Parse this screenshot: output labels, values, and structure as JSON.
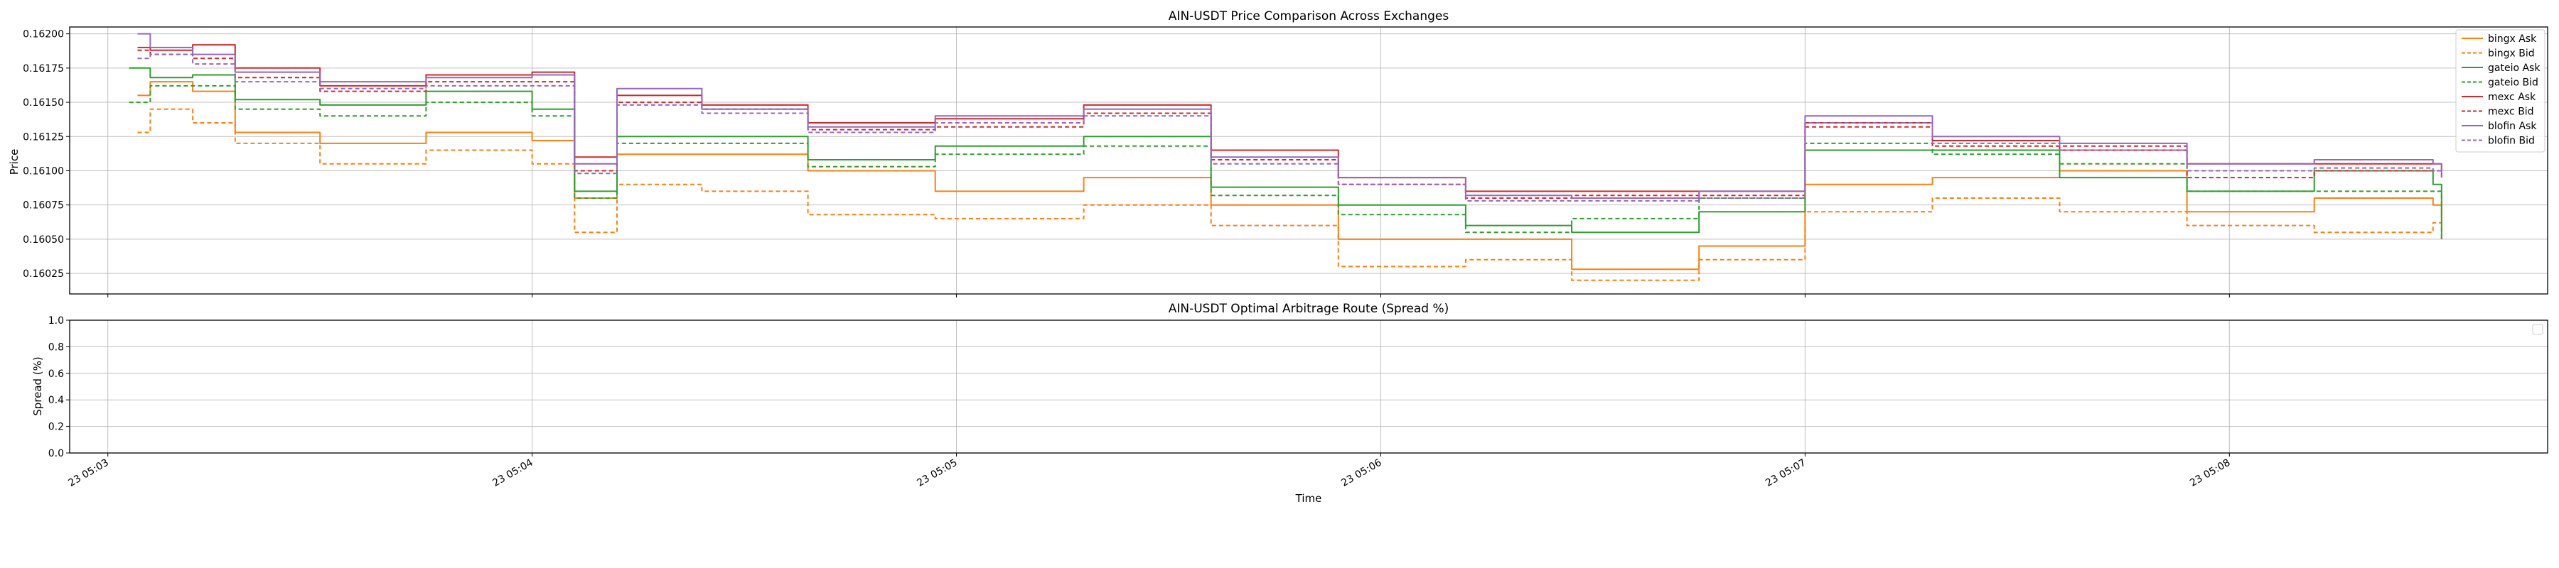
{
  "figure": {
    "background": "#ffffff"
  },
  "chart_data": [
    {
      "type": "line",
      "title": "AIN-USDT Price Comparison Across Exchanges",
      "xlabel": "",
      "ylabel": "Price",
      "xlim": [
        -0.09,
        5.75
      ],
      "ylim": [
        0.1601,
        0.16205
      ],
      "yticks": [
        0.16025,
        0.1605,
        0.16075,
        0.161,
        0.16125,
        0.1615,
        0.16175,
        0.162
      ],
      "ytick_labels": [
        "0.16025",
        "0.16050",
        "0.16075",
        "0.16100",
        "0.16125",
        "0.16150",
        "0.16175",
        "0.16200"
      ],
      "grid": true,
      "legend_position": "top-right",
      "series": [
        {
          "name": "bingx Ask",
          "color": "#ff7f0e",
          "dash": "solid",
          "dash_style": "none",
          "x": [
            0.07,
            0.1,
            0.2,
            0.3,
            0.5,
            0.75,
            1.0,
            1.1,
            1.2,
            1.4,
            1.65,
            1.95,
            2.3,
            2.6,
            2.9,
            3.2,
            3.45,
            3.75,
            4.0,
            4.3,
            4.6,
            4.9,
            5.2,
            5.48,
            5.5
          ],
          "y": [
            0.16155,
            0.16165,
            0.16158,
            0.16128,
            0.1612,
            0.16128,
            0.16122,
            0.1608,
            0.16112,
            0.16112,
            0.161,
            0.16085,
            0.16095,
            0.16075,
            0.1605,
            0.1605,
            0.16028,
            0.16045,
            0.1609,
            0.16095,
            0.161,
            0.1607,
            0.1608,
            0.16075,
            0.16065
          ]
        },
        {
          "name": "bingx Bid",
          "color": "#ff7f0e",
          "dash": "dashed",
          "dash_style": "6,4",
          "x": [
            0.07,
            0.1,
            0.2,
            0.3,
            0.5,
            0.75,
            1.0,
            1.1,
            1.2,
            1.4,
            1.65,
            1.95,
            2.3,
            2.6,
            2.9,
            3.2,
            3.45,
            3.75,
            4.0,
            4.3,
            4.6,
            4.9,
            5.2,
            5.48,
            5.5
          ],
          "y": [
            0.16128,
            0.16145,
            0.16135,
            0.1612,
            0.16105,
            0.16115,
            0.16105,
            0.16055,
            0.1609,
            0.16085,
            0.16068,
            0.16065,
            0.16075,
            0.1606,
            0.1603,
            0.16035,
            0.1602,
            0.16035,
            0.1607,
            0.1608,
            0.1607,
            0.1606,
            0.16055,
            0.16062,
            0.1605
          ]
        },
        {
          "name": "gateio Ask",
          "color": "#2ca02c",
          "dash": "solid",
          "dash_style": "none",
          "x": [
            0.05,
            0.1,
            0.2,
            0.3,
            0.5,
            0.75,
            1.0,
            1.1,
            1.2,
            1.4,
            1.65,
            1.95,
            2.3,
            2.6,
            2.9,
            3.2,
            3.45,
            3.75,
            4.0,
            4.3,
            4.6,
            4.9,
            5.2,
            5.48,
            5.5
          ],
          "y": [
            0.16175,
            0.16168,
            0.1617,
            0.16152,
            0.16148,
            0.16158,
            0.16145,
            0.16085,
            0.16125,
            0.16125,
            0.16108,
            0.16118,
            0.16125,
            0.16088,
            0.16075,
            0.1606,
            0.16055,
            0.1607,
            0.16115,
            0.16115,
            0.16095,
            0.16085,
            0.161,
            0.1609,
            0.1605
          ]
        },
        {
          "name": "gateio Bid",
          "color": "#2ca02c",
          "dash": "dashed",
          "dash_style": "6,4",
          "x": [
            0.05,
            0.1,
            0.2,
            0.3,
            0.5,
            0.75,
            1.0,
            1.1,
            1.2,
            1.4,
            1.65,
            1.95,
            2.3,
            2.6,
            2.9,
            3.2,
            3.45,
            3.75,
            4.0,
            4.3,
            4.6,
            4.9,
            5.2,
            5.48,
            5.5
          ],
          "y": [
            0.1615,
            0.16162,
            0.16162,
            0.16145,
            0.1614,
            0.1615,
            0.1614,
            0.1608,
            0.1612,
            0.1612,
            0.16103,
            0.16112,
            0.16118,
            0.16082,
            0.16068,
            0.16055,
            0.16065,
            0.1608,
            0.1612,
            0.16112,
            0.16105,
            0.16085,
            0.16085,
            0.16085,
            0.16075
          ]
        },
        {
          "name": "mexc Ask",
          "color": "#d62728",
          "dash": "solid",
          "dash_style": "none",
          "x": [
            0.07,
            0.1,
            0.2,
            0.3,
            0.5,
            0.75,
            1.0,
            1.1,
            1.2,
            1.4,
            1.65,
            1.95,
            2.3,
            2.6,
            2.9,
            3.2,
            3.45,
            3.75,
            4.0,
            4.3,
            4.6,
            4.9,
            5.2,
            5.48,
            5.5
          ],
          "y": [
            0.1619,
            0.16188,
            0.16192,
            0.16175,
            0.16162,
            0.1617,
            0.16172,
            0.1611,
            0.16155,
            0.16148,
            0.16135,
            0.16138,
            0.16148,
            0.16115,
            0.16095,
            0.16085,
            0.16085,
            0.16085,
            0.16135,
            0.16122,
            0.16115,
            0.16105,
            0.16105,
            0.16105,
            0.161
          ]
        },
        {
          "name": "mexc Bid",
          "color": "#d62728",
          "dash": "dashed",
          "dash_style": "6,4",
          "x": [
            0.07,
            0.1,
            0.2,
            0.3,
            0.5,
            0.75,
            1.0,
            1.1,
            1.2,
            1.4,
            1.65,
            1.95,
            2.3,
            2.6,
            2.9,
            3.2,
            3.45,
            3.75,
            4.0,
            4.3,
            4.6,
            4.9,
            5.2,
            5.48,
            5.5
          ],
          "y": [
            0.16188,
            0.16185,
            0.16182,
            0.16168,
            0.16158,
            0.16165,
            0.16165,
            0.161,
            0.1615,
            0.16145,
            0.1613,
            0.16132,
            0.16142,
            0.16108,
            0.1609,
            0.1608,
            0.16082,
            0.16082,
            0.16132,
            0.16118,
            0.16118,
            0.16095,
            0.161,
            0.161,
            0.16095
          ]
        },
        {
          "name": "blofin Ask",
          "color": "#9467bd",
          "dash": "solid",
          "dash_style": "none",
          "x": [
            0.07,
            0.1,
            0.2,
            0.3,
            0.5,
            0.75,
            1.0,
            1.1,
            1.2,
            1.4,
            1.65,
            1.95,
            2.3,
            2.6,
            2.9,
            3.2,
            3.45,
            3.75,
            4.0,
            4.3,
            4.6,
            4.9,
            5.2,
            5.48,
            5.5
          ],
          "y": [
            0.162,
            0.1619,
            0.16185,
            0.16172,
            0.16165,
            0.16168,
            0.1617,
            0.16105,
            0.1616,
            0.16145,
            0.16132,
            0.1614,
            0.16145,
            0.1611,
            0.16095,
            0.16082,
            0.1608,
            0.16085,
            0.1614,
            0.16125,
            0.1612,
            0.16105,
            0.16108,
            0.16105,
            0.16098
          ]
        },
        {
          "name": "blofin Bid",
          "color": "#9467bd",
          "dash": "dashed",
          "dash_style": "6,4",
          "x": [
            0.07,
            0.1,
            0.2,
            0.3,
            0.5,
            0.75,
            1.0,
            1.1,
            1.2,
            1.4,
            1.65,
            1.95,
            2.3,
            2.6,
            2.9,
            3.2,
            3.45,
            3.75,
            4.0,
            4.3,
            4.6,
            4.9,
            5.2,
            5.48,
            5.5
          ],
          "y": [
            0.16182,
            0.16185,
            0.16178,
            0.16165,
            0.1616,
            0.16162,
            0.16162,
            0.16098,
            0.16148,
            0.16142,
            0.16128,
            0.16135,
            0.1614,
            0.16105,
            0.1609,
            0.16078,
            0.16078,
            0.1608,
            0.16135,
            0.1612,
            0.16115,
            0.161,
            0.16102,
            0.161,
            0.16095
          ]
        }
      ]
    },
    {
      "type": "line",
      "title": "AIN-USDT Optimal Arbitrage Route (Spread %)",
      "xlabel": "Time",
      "ylabel": "Spread (%)",
      "xlim": [
        -0.09,
        5.75
      ],
      "ylim": [
        0.0,
        1.0
      ],
      "yticks": [
        0.0,
        0.2,
        0.4,
        0.6,
        0.8,
        1.0
      ],
      "ytick_labels": [
        "0.0",
        "0.2",
        "0.4",
        "0.6",
        "0.8",
        "1.0"
      ],
      "xticks": [
        0,
        1,
        2,
        3,
        4,
        5
      ],
      "xtick_labels": [
        "23 05:03",
        "23 05:04",
        "23 05:05",
        "23 05:06",
        "23 05:07",
        "23 05:08"
      ],
      "grid": true,
      "legend_position": "top-right",
      "series": []
    }
  ]
}
